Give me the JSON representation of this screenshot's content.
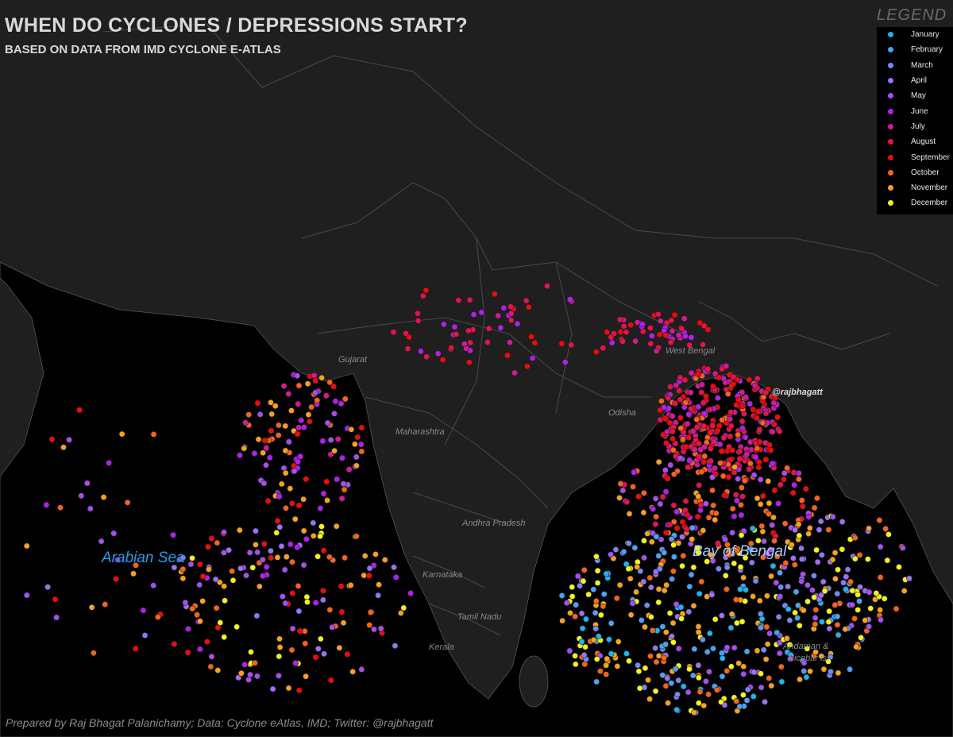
{
  "title": "WHEN DO CYCLONES / DEPRESSIONS START?",
  "subtitle": "BASED ON DATA FROM IMD CYCLONE E-ATLAS",
  "legend": {
    "title": "LEGEND",
    "items": [
      {
        "label": "January",
        "color": "#1ab6f0"
      },
      {
        "label": "February",
        "color": "#4aa3f5"
      },
      {
        "label": "March",
        "color": "#6f8cf5"
      },
      {
        "label": "April",
        "color": "#9a72f5"
      },
      {
        "label": "May",
        "color": "#a84ef0"
      },
      {
        "label": "June",
        "color": "#b21ff0"
      },
      {
        "label": "July",
        "color": "#d01a9a"
      },
      {
        "label": "August",
        "color": "#e8124a"
      },
      {
        "label": "September",
        "color": "#f00a0a"
      },
      {
        "label": "October",
        "color": "#f5641a"
      },
      {
        "label": "November",
        "color": "#f7a11f"
      },
      {
        "label": "December",
        "color": "#f5f51a"
      }
    ]
  },
  "places": {
    "gujarat": "Gujarat",
    "maharashtra": "Maharashtra",
    "odisha": "Odisha",
    "west_bengal": "West Bengal",
    "andhra": "Andhra Pradesh",
    "karnataka": "Karnataka",
    "tamil_nadu": "Tamil Nadu",
    "kerala": "Kerala",
    "andaman": "Andaman &",
    "andaman2": "Nicobar is.",
    "handle": "@rajbhagatt"
  },
  "seas": {
    "arabian": "Arabian Sea",
    "bengal": "Bay of Bengal"
  },
  "credit": "Prepared by Raj Bhagat Palanichamy; Data: Cyclone eAtlas, IMD; Twitter: @rajbhagatt"
}
